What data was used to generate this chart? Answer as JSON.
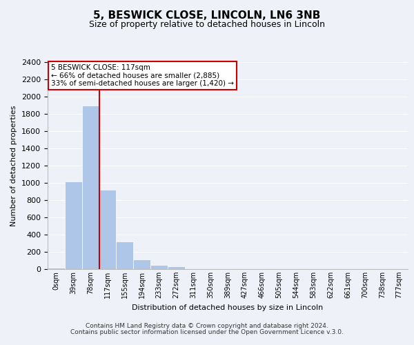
{
  "title": "5, BESWICK CLOSE, LINCOLN, LN6 3NB",
  "subtitle": "Size of property relative to detached houses in Lincoln",
  "xlabel": "Distribution of detached houses by size in Lincoln",
  "ylabel": "Number of detached properties",
  "bar_labels": [
    "0sqm",
    "39sqm",
    "78sqm",
    "117sqm",
    "155sqm",
    "194sqm",
    "233sqm",
    "272sqm",
    "311sqm",
    "350sqm",
    "389sqm",
    "427sqm",
    "466sqm",
    "505sqm",
    "544sqm",
    "583sqm",
    "622sqm",
    "661sqm",
    "700sqm",
    "738sqm",
    "777sqm"
  ],
  "bar_values": [
    20,
    1020,
    1900,
    920,
    320,
    110,
    50,
    30,
    0,
    0,
    0,
    0,
    0,
    0,
    0,
    0,
    0,
    0,
    0,
    0,
    0
  ],
  "bar_color": "#aec6e8",
  "vline_color": "#cc0000",
  "ylim": [
    0,
    2400
  ],
  "yticks": [
    0,
    200,
    400,
    600,
    800,
    1000,
    1200,
    1400,
    1600,
    1800,
    2000,
    2200,
    2400
  ],
  "annotation_title": "5 BESWICK CLOSE: 117sqm",
  "annotation_line1": "← 66% of detached houses are smaller (2,885)",
  "annotation_line2": "33% of semi-detached houses are larger (1,420) →",
  "footer1": "Contains HM Land Registry data © Crown copyright and database right 2024.",
  "footer2": "Contains public sector information licensed under the Open Government Licence v.3.0.",
  "background_color": "#eef2f8",
  "plot_background": "#eef2f8"
}
